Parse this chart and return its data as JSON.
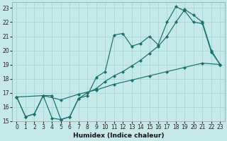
{
  "xlabel": "Humidex (Indice chaleur)",
  "bg_color": "#c5e8e8",
  "grid_color": "#aad4d4",
  "line_color": "#1a6e6e",
  "xlim": [
    -0.5,
    23.5
  ],
  "ylim": [
    15,
    23.4
  ],
  "xticks": [
    0,
    1,
    2,
    3,
    4,
    5,
    6,
    7,
    8,
    9,
    10,
    11,
    12,
    13,
    14,
    15,
    16,
    17,
    18,
    19,
    20,
    21,
    22,
    23
  ],
  "yticks": [
    15,
    16,
    17,
    18,
    19,
    20,
    21,
    22,
    23
  ],
  "series": [
    {
      "x": [
        0,
        1,
        2,
        3,
        4,
        5,
        6,
        7,
        8,
        9,
        10,
        11,
        12,
        13,
        14,
        15,
        16,
        17,
        18,
        19,
        20,
        21,
        22,
        23
      ],
      "y": [
        16.7,
        15.3,
        15.5,
        16.8,
        15.2,
        15.1,
        15.3,
        16.6,
        16.8,
        18.1,
        18.5,
        21.1,
        21.2,
        20.3,
        20.5,
        21.0,
        20.4,
        22.0,
        23.1,
        22.8,
        22.0,
        21.9,
        19.9,
        19.0
      ]
    },
    {
      "x": [
        0,
        1,
        2,
        3,
        4,
        5,
        6,
        7,
        8,
        9,
        10,
        11,
        12,
        13,
        14,
        15,
        16,
        17,
        18,
        19,
        20,
        21,
        22,
        23
      ],
      "y": [
        16.7,
        15.3,
        15.5,
        16.8,
        16.8,
        15.1,
        15.3,
        16.6,
        17.0,
        17.3,
        17.8,
        18.2,
        18.5,
        18.9,
        19.3,
        19.8,
        20.3,
        21.0,
        22.0,
        22.9,
        22.5,
        22.0,
        20.0,
        19.0
      ]
    },
    {
      "x": [
        0,
        3,
        5,
        7,
        9,
        11,
        13,
        15,
        17,
        19,
        21,
        23
      ],
      "y": [
        16.7,
        16.8,
        16.5,
        16.9,
        17.2,
        17.6,
        17.9,
        18.2,
        18.5,
        18.8,
        19.1,
        19.0
      ]
    }
  ]
}
